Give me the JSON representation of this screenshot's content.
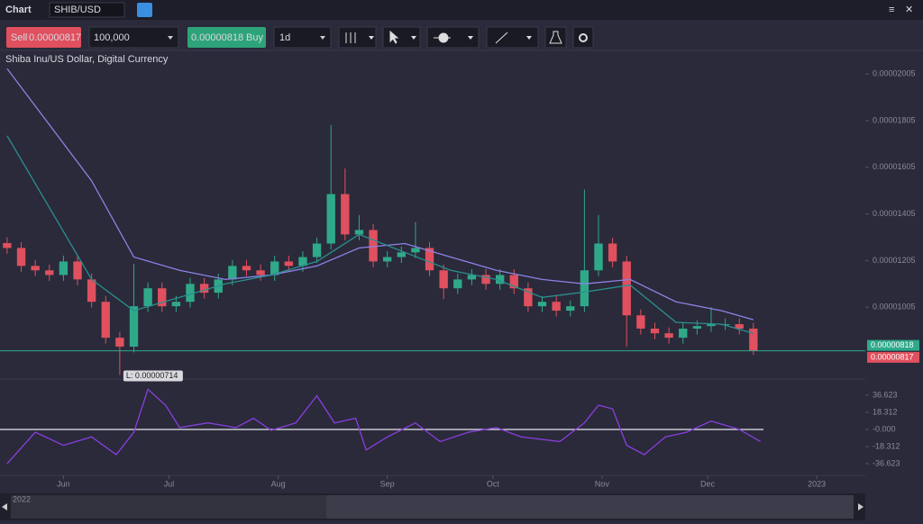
{
  "toolbar": {
    "title": "Chart",
    "symbol": "SHIB/USD",
    "sell_label": "Sell",
    "sell_price": "0.00000817",
    "amount": "100,000",
    "buy_price": "0.00000818",
    "buy_label": "Buy",
    "interval": "1d"
  },
  "navigator": {
    "label": "2022"
  },
  "chart_data": {
    "type": "candlestick",
    "subtitle": "Shiba Inu/US Dollar, Digital Currency",
    "up_color": "#2fa98a",
    "down_color": "#e0505e",
    "xlim": [
      -17,
      226
    ],
    "xticks": [
      {
        "value": 0,
        "label": "Jun"
      },
      {
        "value": 30,
        "label": "Jul"
      },
      {
        "value": 61,
        "label": "Aug"
      },
      {
        "value": 92,
        "label": "Sep"
      },
      {
        "value": 122,
        "label": "Oct"
      },
      {
        "value": 153,
        "label": "Nov"
      },
      {
        "value": 183,
        "label": "Dec"
      },
      {
        "value": 214,
        "label": "2023"
      }
    ],
    "ylim": [
      7.2e-06,
      2.11e-05
    ],
    "yticks": [
      2.005e-05,
      1.805e-05,
      1.605e-05,
      1.405e-05,
      1.205e-05,
      1.005e-05
    ],
    "x": [
      -16,
      -12,
      -8,
      -4,
      0,
      4,
      8,
      12,
      16,
      20,
      24,
      28,
      32,
      36,
      40,
      44,
      48,
      52,
      56,
      60,
      64,
      68,
      72,
      76,
      80,
      84,
      88,
      92,
      96,
      100,
      104,
      108,
      112,
      116,
      120,
      124,
      128,
      132,
      136,
      140,
      144,
      148,
      152,
      156,
      160,
      164,
      168,
      172,
      176,
      180,
      184,
      188,
      192,
      196
    ],
    "open": [
      1.28e-05,
      1.259e-05,
      1.182e-05,
      1.163e-05,
      1.143e-05,
      1.201e-05,
      1.124e-05,
      1.028e-05,
      8.74e-06,
      8.36e-06,
      1.009e-05,
      1.086e-05,
      1.009e-05,
      1.028e-05,
      1.105e-05,
      1.067e-05,
      1.124e-05,
      1.182e-05,
      1.163e-05,
      1.143e-05,
      1.201e-05,
      1.182e-05,
      1.22e-05,
      1.278e-05,
      1.49e-05,
      1.317e-05,
      1.336e-05,
      1.201e-05,
      1.22e-05,
      1.24e-05,
      1.259e-05,
      1.163e-05,
      1.086e-05,
      1.124e-05,
      1.143e-05,
      1.105e-05,
      1.143e-05,
      1.086e-05,
      1.009e-05,
      1.028e-05,
      9.9e-06,
      1.009e-05,
      1.163e-05,
      1.278e-05,
      1.201e-05,
      9.7e-06,
      9.13e-06,
      8.93e-06,
      8.74e-06,
      9.13e-06,
      9.24e-06,
      9.32e-06,
      9.32e-06,
      9.13e-06
    ],
    "high": [
      1.305e-05,
      1.284e-05,
      1.207e-05,
      1.188e-05,
      1.226e-05,
      1.226e-05,
      1.149e-05,
      1.053e-05,
      8.99e-06,
      1.19e-05,
      1.111e-05,
      1.111e-05,
      1.053e-05,
      1.13e-05,
      1.13e-05,
      1.149e-05,
      1.207e-05,
      1.207e-05,
      1.188e-05,
      1.226e-05,
      1.226e-05,
      1.245e-05,
      1.303e-05,
      1.786e-05,
      1.6e-05,
      1.4e-05,
      1.361e-05,
      1.245e-05,
      1.265e-05,
      1.37e-05,
      1.284e-05,
      1.188e-05,
      1.149e-05,
      1.168e-05,
      1.168e-05,
      1.168e-05,
      1.168e-05,
      1.111e-05,
      1.053e-05,
      1.053e-05,
      1.034e-05,
      1.509e-05,
      1.4e-05,
      1.303e-05,
      1.226e-05,
      9.95e-06,
      9.38e-06,
      9.18e-06,
      9.38e-06,
      9.49e-06,
      1.005e-05,
      9.57e-06,
      9.57e-06,
      9.38e-06
    ],
    "low": [
      1.234e-05,
      1.157e-05,
      1.138e-05,
      1.118e-05,
      1.118e-05,
      1.099e-05,
      1.003e-05,
      8.49e-06,
      7.14e-06,
      8.11e-06,
      9.84e-06,
      9.84e-06,
      9.84e-06,
      1.003e-05,
      1.042e-05,
      1.042e-05,
      1.099e-05,
      1.138e-05,
      1.118e-05,
      1.118e-05,
      1.157e-05,
      1.157e-05,
      1.195e-05,
      1.253e-05,
      1.292e-05,
      1.292e-05,
      1.176e-05,
      1.176e-05,
      1.195e-05,
      1.215e-05,
      1.138e-05,
      1.04e-05,
      1.061e-05,
      1.099e-05,
      1.08e-05,
      1.08e-05,
      1.061e-05,
      9.84e-06,
      9.84e-06,
      9.65e-06,
      9.65e-06,
      9.84e-06,
      1.138e-05,
      1.176e-05,
      8.36e-06,
      8.88e-06,
      8.68e-06,
      8.49e-06,
      8.49e-06,
      8.88e-06,
      8.99e-06,
      9.07e-06,
      8.88e-06,
      8e-06
    ],
    "close": [
      1.259e-05,
      1.182e-05,
      1.163e-05,
      1.143e-05,
      1.201e-05,
      1.124e-05,
      1.028e-05,
      8.74e-06,
      8.36e-06,
      1.009e-05,
      1.086e-05,
      1.009e-05,
      1.028e-05,
      1.105e-05,
      1.067e-05,
      1.124e-05,
      1.182e-05,
      1.163e-05,
      1.143e-05,
      1.201e-05,
      1.182e-05,
      1.22e-05,
      1.278e-05,
      1.49e-05,
      1.317e-05,
      1.336e-05,
      1.201e-05,
      1.22e-05,
      1.24e-05,
      1.259e-05,
      1.163e-05,
      1.086e-05,
      1.124e-05,
      1.143e-05,
      1.105e-05,
      1.143e-05,
      1.086e-05,
      1.009e-05,
      1.028e-05,
      9.9e-06,
      1.009e-05,
      1.163e-05,
      1.278e-05,
      1.201e-05,
      9.7e-06,
      9.13e-06,
      8.93e-06,
      8.74e-06,
      9.13e-06,
      9.24e-06,
      9.32e-06,
      9.32e-06,
      9.13e-06,
      8.17e-06
    ],
    "lines": [
      {
        "color": "#8c82e6",
        "x": [
          -16,
          8,
          20,
          33,
          46,
          59,
          72,
          84,
          97,
          110,
          123,
          136,
          148,
          161,
          174,
          187,
          196
        ],
        "values": [
          2.028e-05,
          1.547e-05,
          1.22e-05,
          1.163e-05,
          1.124e-05,
          1.143e-05,
          1.182e-05,
          1.259e-05,
          1.278e-05,
          1.22e-05,
          1.163e-05,
          1.124e-05,
          1.105e-05,
          1.124e-05,
          1.028e-05,
          9.9e-06,
          9.51e-06
        ]
      },
      {
        "color": "#2a8f8f",
        "x": [
          -16,
          8,
          20,
          33,
          46,
          59,
          72,
          84,
          97,
          110,
          123,
          136,
          148,
          161,
          174,
          187,
          196
        ],
        "values": [
          1.74e-05,
          1.124e-05,
          9.9e-06,
          1.047e-05,
          1.105e-05,
          1.143e-05,
          1.201e-05,
          1.317e-05,
          1.24e-05,
          1.163e-05,
          1.124e-05,
          1.047e-05,
          1.07e-05,
          1.1e-05,
          9.4e-06,
          9.32e-06,
          8.93e-06
        ]
      }
    ],
    "price_lines": [
      {
        "value": 8.18e-06,
        "color": "#2fa98a"
      },
      {
        "value": 8.17e-06,
        "color": "#e0505e"
      }
    ],
    "annotations": [
      {
        "x": 16,
        "value": 7.14e-06,
        "label": "L: 0.00000714"
      }
    ],
    "oscillator": {
      "color": "#8a3ee0",
      "ylim": [
        -46.3,
        50.1
      ],
      "yticks": [
        36.623,
        18.312,
        {
          "value": 0,
          "label": "-0.000"
        },
        -18.312,
        -36.623
      ],
      "x": [
        -16,
        -8,
        0,
        8,
        15,
        20,
        24,
        29,
        33,
        41,
        49,
        54,
        59,
        66,
        72,
        77,
        83,
        86,
        92,
        100,
        107,
        115,
        123,
        130,
        141,
        148,
        152,
        156,
        160,
        165,
        171,
        177,
        184,
        192,
        198
      ],
      "values": [
        -36.6,
        -3,
        -17,
        -8,
        -27,
        -3,
        43,
        26,
        2,
        7,
        2,
        12,
        -1,
        7,
        36,
        7,
        12,
        -22,
        -8,
        7,
        -13,
        -3,
        2,
        -8,
        -13,
        7,
        26,
        22,
        -17,
        -27,
        -8,
        -3,
        9,
        0,
        -13
      ]
    }
  }
}
